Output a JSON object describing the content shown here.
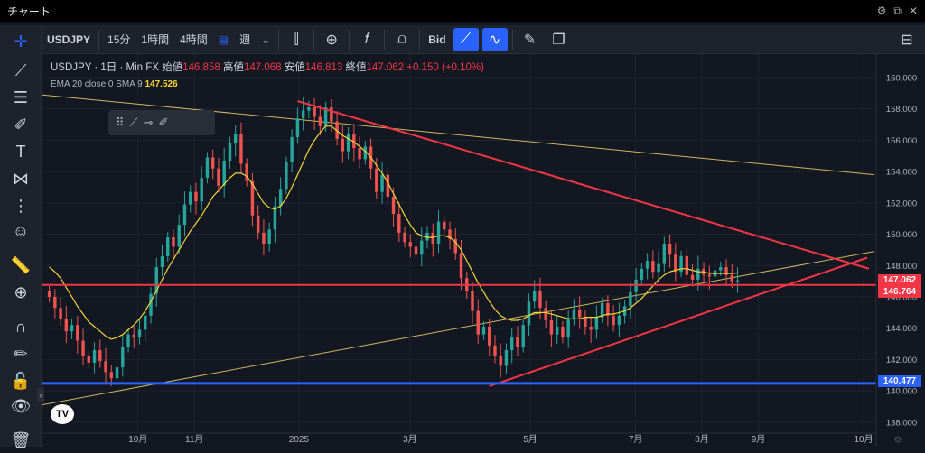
{
  "window": {
    "title": "チャート"
  },
  "toolbar": {
    "symbol": "USDJPY",
    "intervals": [
      "15分",
      "1時間",
      "4時間"
    ],
    "week_label": "週",
    "bid_label": "Bid"
  },
  "legend": {
    "symbol": "USDJPY",
    "interval": "1日",
    "source": "Min FX",
    "open_label": "始値",
    "open": "146.858",
    "high_label": "高値",
    "high": "147.068",
    "low_label": "安値",
    "low": "146.813",
    "close_label": "終値",
    "close": "147.062",
    "change": "+0.150 (+0.10%)",
    "ema_text": "EMA 20 close 0 SMA 9",
    "ema_value": "147.526"
  },
  "price_tags": {
    "current": "147.062",
    "level_red": "146.764",
    "level_blue": "140.477"
  },
  "colors": {
    "up": "#26a69a",
    "down": "#ef5350",
    "ema": "#f7d634",
    "trend_red": "#f23645",
    "support_blue": "#2962ff",
    "thin_line": "#c9b860"
  },
  "chart_data": {
    "type": "candlestick",
    "x_ticks": [
      "10月",
      "11月",
      "2025",
      "3月",
      "5月",
      "7月",
      "8月",
      "9月",
      "10月"
    ],
    "y_ticks": [
      138,
      140,
      142,
      144,
      146,
      148,
      150,
      152,
      154,
      156,
      158,
      160
    ],
    "ylim": [
      137.3,
      161.5
    ],
    "closes": [
      146.0,
      145.3,
      144.6,
      143.8,
      144.2,
      143.2,
      142.2,
      141.8,
      142.6,
      141.9,
      141.2,
      140.8,
      141.5,
      142.8,
      143.6,
      143.4,
      143.9,
      144.8,
      146.2,
      147.9,
      148.6,
      149.8,
      149.2,
      150.6,
      151.9,
      152.7,
      152.1,
      153.6,
      154.9,
      154.2,
      153.1,
      154.7,
      155.8,
      156.4,
      154.5,
      153.4,
      151.2,
      150.1,
      149.4,
      150.3,
      151.8,
      152.9,
      154.6,
      156.2,
      157.4,
      157.9,
      158.1,
      157.5,
      156.9,
      158.1,
      157.2,
      156.1,
      155.3,
      156.4,
      155.5,
      154.8,
      155.6,
      154.2,
      152.7,
      153.8,
      152.4,
      151.3,
      150.1,
      149.5,
      149.2,
      148.7,
      149.6,
      150.1,
      149.4,
      150.8,
      150.3,
      149.7,
      148.8,
      147.2,
      146.4,
      145.1,
      143.6,
      144.1,
      142.9,
      142.2,
      141.6,
      142.6,
      143.4,
      142.8,
      144.2,
      145.7,
      146.4,
      145.3,
      144.5,
      143.6,
      144.1,
      143.4,
      144.6,
      145.2,
      144.7,
      144.1,
      143.9,
      144.7,
      145.6,
      144.8,
      144.2,
      144.8,
      145.4,
      146.3,
      147.1,
      147.8,
      148.3,
      147.6,
      148.1,
      149.4,
      148.7,
      147.6,
      148.6,
      147.4,
      147.1,
      147.8,
      147.4,
      147.3,
      147.7,
      147.9,
      147.4,
      147.0,
      147.062
    ],
    "ema": [
      147.9,
      147.6,
      147.2,
      146.6,
      146.0,
      145.4,
      144.9,
      144.4,
      144.1,
      143.8,
      143.5,
      143.3,
      143.4,
      143.6,
      143.9,
      144.2,
      144.6,
      145.1,
      145.7,
      146.4,
      147.1,
      147.8,
      148.4,
      149.0,
      149.6,
      150.2,
      150.7,
      151.2,
      151.8,
      152.4,
      152.8,
      153.2,
      153.6,
      153.9,
      153.9,
      153.7,
      153.2,
      152.6,
      152.0,
      151.7,
      151.6,
      151.8,
      152.3,
      153.0,
      153.8,
      154.6,
      155.4,
      156.0,
      156.5,
      156.9,
      156.9,
      156.6,
      156.3,
      156.1,
      155.9,
      155.6,
      155.3,
      154.9,
      154.4,
      153.9,
      153.3,
      152.6,
      151.9,
      151.2,
      150.6,
      150.1,
      149.9,
      149.8,
      149.8,
      149.9,
      149.9,
      149.8,
      149.5,
      149.0,
      148.3,
      147.6,
      146.9,
      146.3,
      145.7,
      145.2,
      144.8,
      144.6,
      144.5,
      144.5,
      144.6,
      144.8,
      145.0,
      145.0,
      145.0,
      144.9,
      144.8,
      144.7,
      144.6,
      144.6,
      144.6,
      144.7,
      144.7,
      144.7,
      144.8,
      144.9,
      144.9,
      145.0,
      145.1,
      145.3,
      145.6,
      145.9,
      146.3,
      146.7,
      147.1,
      147.4,
      147.6,
      147.7,
      147.8,
      147.8,
      147.7,
      147.6,
      147.6,
      147.5,
      147.5,
      147.5,
      147.5,
      147.5,
      147.526
    ],
    "levels": [
      {
        "label": "147.062",
        "y": 147.062
      },
      {
        "label": "146.764",
        "y": 146.764
      },
      {
        "label": "140.477",
        "y": 140.477
      }
    ]
  }
}
